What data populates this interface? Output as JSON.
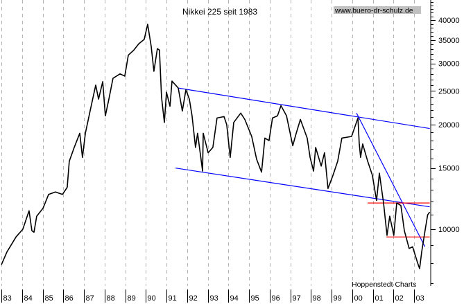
{
  "chart_data": {
    "type": "line",
    "title": "Nikkei 225 seit 1983",
    "watermark": "www.buero-dr-schulz.de",
    "source_note": "Hoppenstedt Charts",
    "y_scale": "log",
    "ylim": [
      6950,
      45700
    ],
    "xlim": [
      1983,
      2003.8
    ],
    "y_ticks": [
      10000,
      15000,
      20000,
      25000,
      30000,
      35000,
      40000
    ],
    "y_tick_labels": [
      "10000",
      "15000",
      "20000",
      "25000",
      "30000",
      "35000",
      "40000"
    ],
    "x_ticks": [
      1983,
      1984,
      1985,
      1986,
      1987,
      1988,
      1989,
      1990,
      1991,
      1992,
      1993,
      1994,
      1995,
      1996,
      1997,
      1998,
      1999,
      2000,
      2001,
      2002,
      2003
    ],
    "x_tick_labels": [
      "83",
      "84",
      "85",
      "86",
      "87",
      "88",
      "89",
      "90",
      "91",
      "92",
      "93",
      "94",
      "95",
      "96",
      "97",
      "98",
      "99",
      "00",
      "01",
      "02",
      "03"
    ],
    "grid": "vertical dashed at each year",
    "y_axis_position": "right",
    "colors": {
      "series": "#000000",
      "trend_lines": "#0000ff",
      "support_lines": "#ff0000",
      "grid": "#b4b4b4",
      "watermark_bg": "#c0c0c0"
    },
    "series": [
      {
        "x": [
          1983.0,
          1983.27,
          1983.71,
          1984.04,
          1984.34,
          1984.48,
          1984.58,
          1984.71,
          1985.02,
          1985.29,
          1985.62,
          1985.96,
          1986.19,
          1986.29,
          1986.53,
          1986.8,
          1986.93,
          1987.07,
          1987.3,
          1987.57,
          1987.71,
          1987.91,
          1988.04,
          1988.21,
          1988.41,
          1988.75,
          1988.98,
          1989.15,
          1989.42,
          1989.66,
          1989.92,
          1990.09,
          1990.26,
          1990.39,
          1990.56,
          1990.66,
          1990.76,
          1990.9,
          1991.0,
          1991.17,
          1991.27,
          1991.57,
          1991.77,
          1991.94,
          1992.11,
          1992.24,
          1992.41,
          1992.51,
          1992.75,
          1992.78,
          1993.02,
          1993.25,
          1993.45,
          1993.79,
          1993.92,
          1994.09,
          1994.26,
          1994.6,
          1994.8,
          1995.13,
          1995.37,
          1995.61,
          1995.77,
          1995.97,
          1996.14,
          1996.38,
          1996.55,
          1996.82,
          1997.12,
          1997.29,
          1997.49,
          1997.82,
          1997.96,
          1998.13,
          1998.23,
          1998.5,
          1998.66,
          1998.83,
          1999.07,
          1999.3,
          1999.5,
          1999.97,
          2000.17,
          2000.28,
          2000.34,
          2000.41,
          2000.51,
          2000.75,
          2000.98,
          2001.18,
          2001.32,
          2001.52,
          2001.69,
          2001.82,
          2002.02,
          2002.16,
          2002.36,
          2002.53,
          2002.76,
          2002.93,
          2003.17,
          2003.27,
          2003.37,
          2003.53,
          2003.66,
          2003.76
        ],
        "y": [
          7900,
          8600,
          9500,
          10000,
          11300,
          9900,
          9800,
          10900,
          11500,
          12600,
          12800,
          12600,
          13200,
          15700,
          17200,
          18900,
          16100,
          18900,
          21900,
          26000,
          23700,
          26600,
          21200,
          23700,
          27200,
          28000,
          27600,
          31700,
          32800,
          34200,
          35200,
          38900,
          33600,
          28500,
          33100,
          32800,
          24000,
          20300,
          24800,
          22600,
          26700,
          25500,
          21900,
          25200,
          23700,
          21200,
          17200,
          18900,
          14700,
          18900,
          16600,
          17200,
          20900,
          21100,
          20000,
          16100,
          20300,
          21600,
          20700,
          18500,
          15900,
          14600,
          18300,
          18000,
          20900,
          21200,
          22700,
          21200,
          17400,
          18900,
          20700,
          18300,
          16100,
          14700,
          17200,
          15200,
          16600,
          13100,
          14300,
          15700,
          18300,
          18500,
          20000,
          20900,
          17700,
          16100,
          17600,
          15700,
          14300,
          12100,
          14500,
          11900,
          9600,
          10900,
          9600,
          11900,
          11700,
          9900,
          8800,
          8900,
          8000,
          7700,
          8600,
          9900,
          11000,
          11200
        ]
      }
    ],
    "annotations": {
      "trend_lines": [
        {
          "from": [
            1991.57,
            25500
          ],
          "to": [
            2003.76,
            19500
          ]
        },
        {
          "from": [
            1991.44,
            15000
          ],
          "to": [
            2003.76,
            11600
          ]
        },
        {
          "from": [
            2000.21,
            21600
          ],
          "to": [
            2003.53,
            8900
          ]
        }
      ],
      "support_lines": [
        {
          "from": [
            2000.75,
            11900
          ],
          "to": [
            2003.76,
            11900
          ]
        },
        {
          "from": [
            2001.66,
            9500
          ],
          "to": [
            2003.76,
            9500
          ]
        }
      ]
    }
  }
}
